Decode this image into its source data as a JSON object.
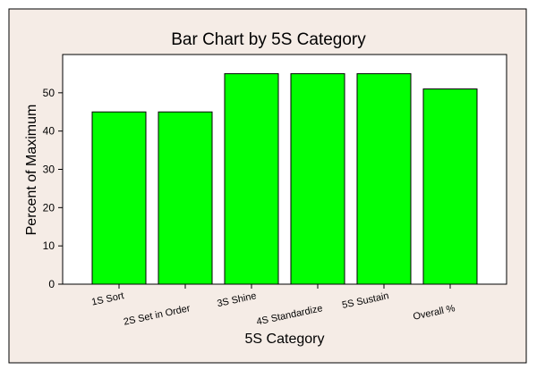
{
  "chart_data": {
    "type": "bar",
    "title": "Bar Chart by 5S Category",
    "xlabel": "5S Category",
    "ylabel": "Percent of Maximum",
    "categories": [
      "1S Sort",
      "2S Set in Order",
      "3S Shine",
      "4S Standardize",
      "5S Sustain",
      "Overall %"
    ],
    "values": [
      45,
      45,
      55,
      55,
      55,
      51
    ],
    "ylim": [
      0,
      60
    ],
    "yticks": [
      0,
      10,
      20,
      30,
      40,
      50
    ],
    "grid": false,
    "legend": "none",
    "colors": {
      "bar_fill": "#00ff00",
      "bar_stroke": "#000000",
      "frame_background": "#f5ece6",
      "plot_background": "#ffffff"
    }
  }
}
